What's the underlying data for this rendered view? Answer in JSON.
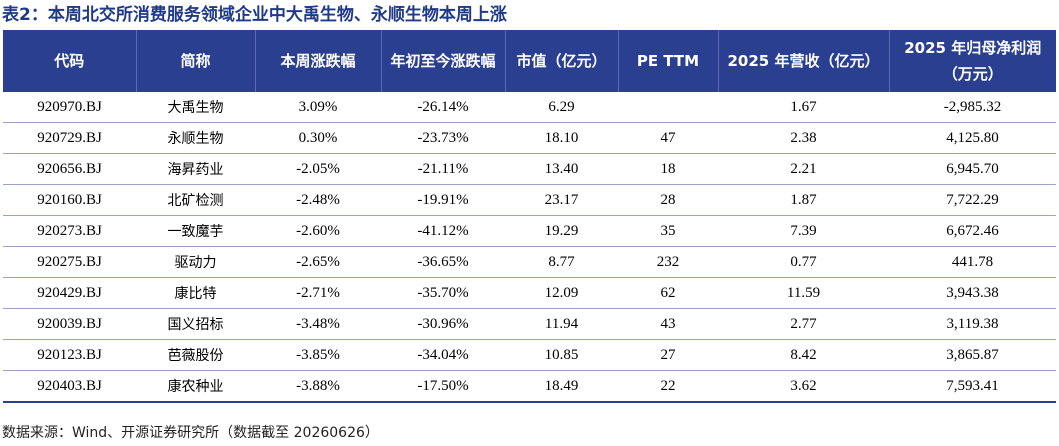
{
  "title": "表2：本周北交所消费服务领域企业中大禹生物、永顺生物本周上涨",
  "columns": [
    "代码",
    "简称",
    "本周涨跌幅",
    "年初至今涨跌幅",
    "市值（亿元）",
    "PE TTM",
    "2025 年营收（亿元）",
    "2025 年归母净利润（万元）"
  ],
  "rows": [
    {
      "code": "920970.BJ",
      "name": "大禹生物",
      "week_change": "3.09%",
      "ytd_change": "-26.14%",
      "market_cap": "6.29",
      "pe_ttm": "",
      "revenue_2025": "1.67",
      "net_profit_2025": "-2,985.32"
    },
    {
      "code": "920729.BJ",
      "name": "永顺生物",
      "week_change": "0.30%",
      "ytd_change": "-23.73%",
      "market_cap": "18.10",
      "pe_ttm": "47",
      "revenue_2025": "2.38",
      "net_profit_2025": "4,125.80"
    },
    {
      "code": "920656.BJ",
      "name": "海昇药业",
      "week_change": "-2.05%",
      "ytd_change": "-21.11%",
      "market_cap": "13.40",
      "pe_ttm": "18",
      "revenue_2025": "2.21",
      "net_profit_2025": "6,945.70"
    },
    {
      "code": "920160.BJ",
      "name": "北矿检测",
      "week_change": "-2.48%",
      "ytd_change": "-19.91%",
      "market_cap": "23.17",
      "pe_ttm": "28",
      "revenue_2025": "1.87",
      "net_profit_2025": "7,722.29"
    },
    {
      "code": "920273.BJ",
      "name": "一致魔芋",
      "week_change": "-2.60%",
      "ytd_change": "-41.12%",
      "market_cap": "19.29",
      "pe_ttm": "35",
      "revenue_2025": "7.39",
      "net_profit_2025": "6,672.46"
    },
    {
      "code": "920275.BJ",
      "name": "驱动力",
      "week_change": "-2.65%",
      "ytd_change": "-36.65%",
      "market_cap": "8.77",
      "pe_ttm": "232",
      "revenue_2025": "0.77",
      "net_profit_2025": "441.78"
    },
    {
      "code": "920429.BJ",
      "name": "康比特",
      "week_change": "-2.71%",
      "ytd_change": "-35.70%",
      "market_cap": "12.09",
      "pe_ttm": "62",
      "revenue_2025": "11.59",
      "net_profit_2025": "3,943.38"
    },
    {
      "code": "920039.BJ",
      "name": "国义招标",
      "week_change": "-3.48%",
      "ytd_change": "-30.96%",
      "market_cap": "11.94",
      "pe_ttm": "43",
      "revenue_2025": "2.77",
      "net_profit_2025": "3,119.38"
    },
    {
      "code": "920123.BJ",
      "name": "芭薇股份",
      "week_change": "-3.85%",
      "ytd_change": "-34.04%",
      "market_cap": "10.85",
      "pe_ttm": "27",
      "revenue_2025": "8.42",
      "net_profit_2025": "3,865.87"
    },
    {
      "code": "920403.BJ",
      "name": "康农种业",
      "week_change": "-3.88%",
      "ytd_change": "-17.50%",
      "market_cap": "18.49",
      "pe_ttm": "22",
      "revenue_2025": "3.62",
      "net_profit_2025": "7,593.41"
    }
  ],
  "source": "数据来源：Wind、开源证券研究所（数据截至 20260626）",
  "colors": {
    "header_bg": "#2a3f8f",
    "title_color": "#1f3a8a"
  }
}
